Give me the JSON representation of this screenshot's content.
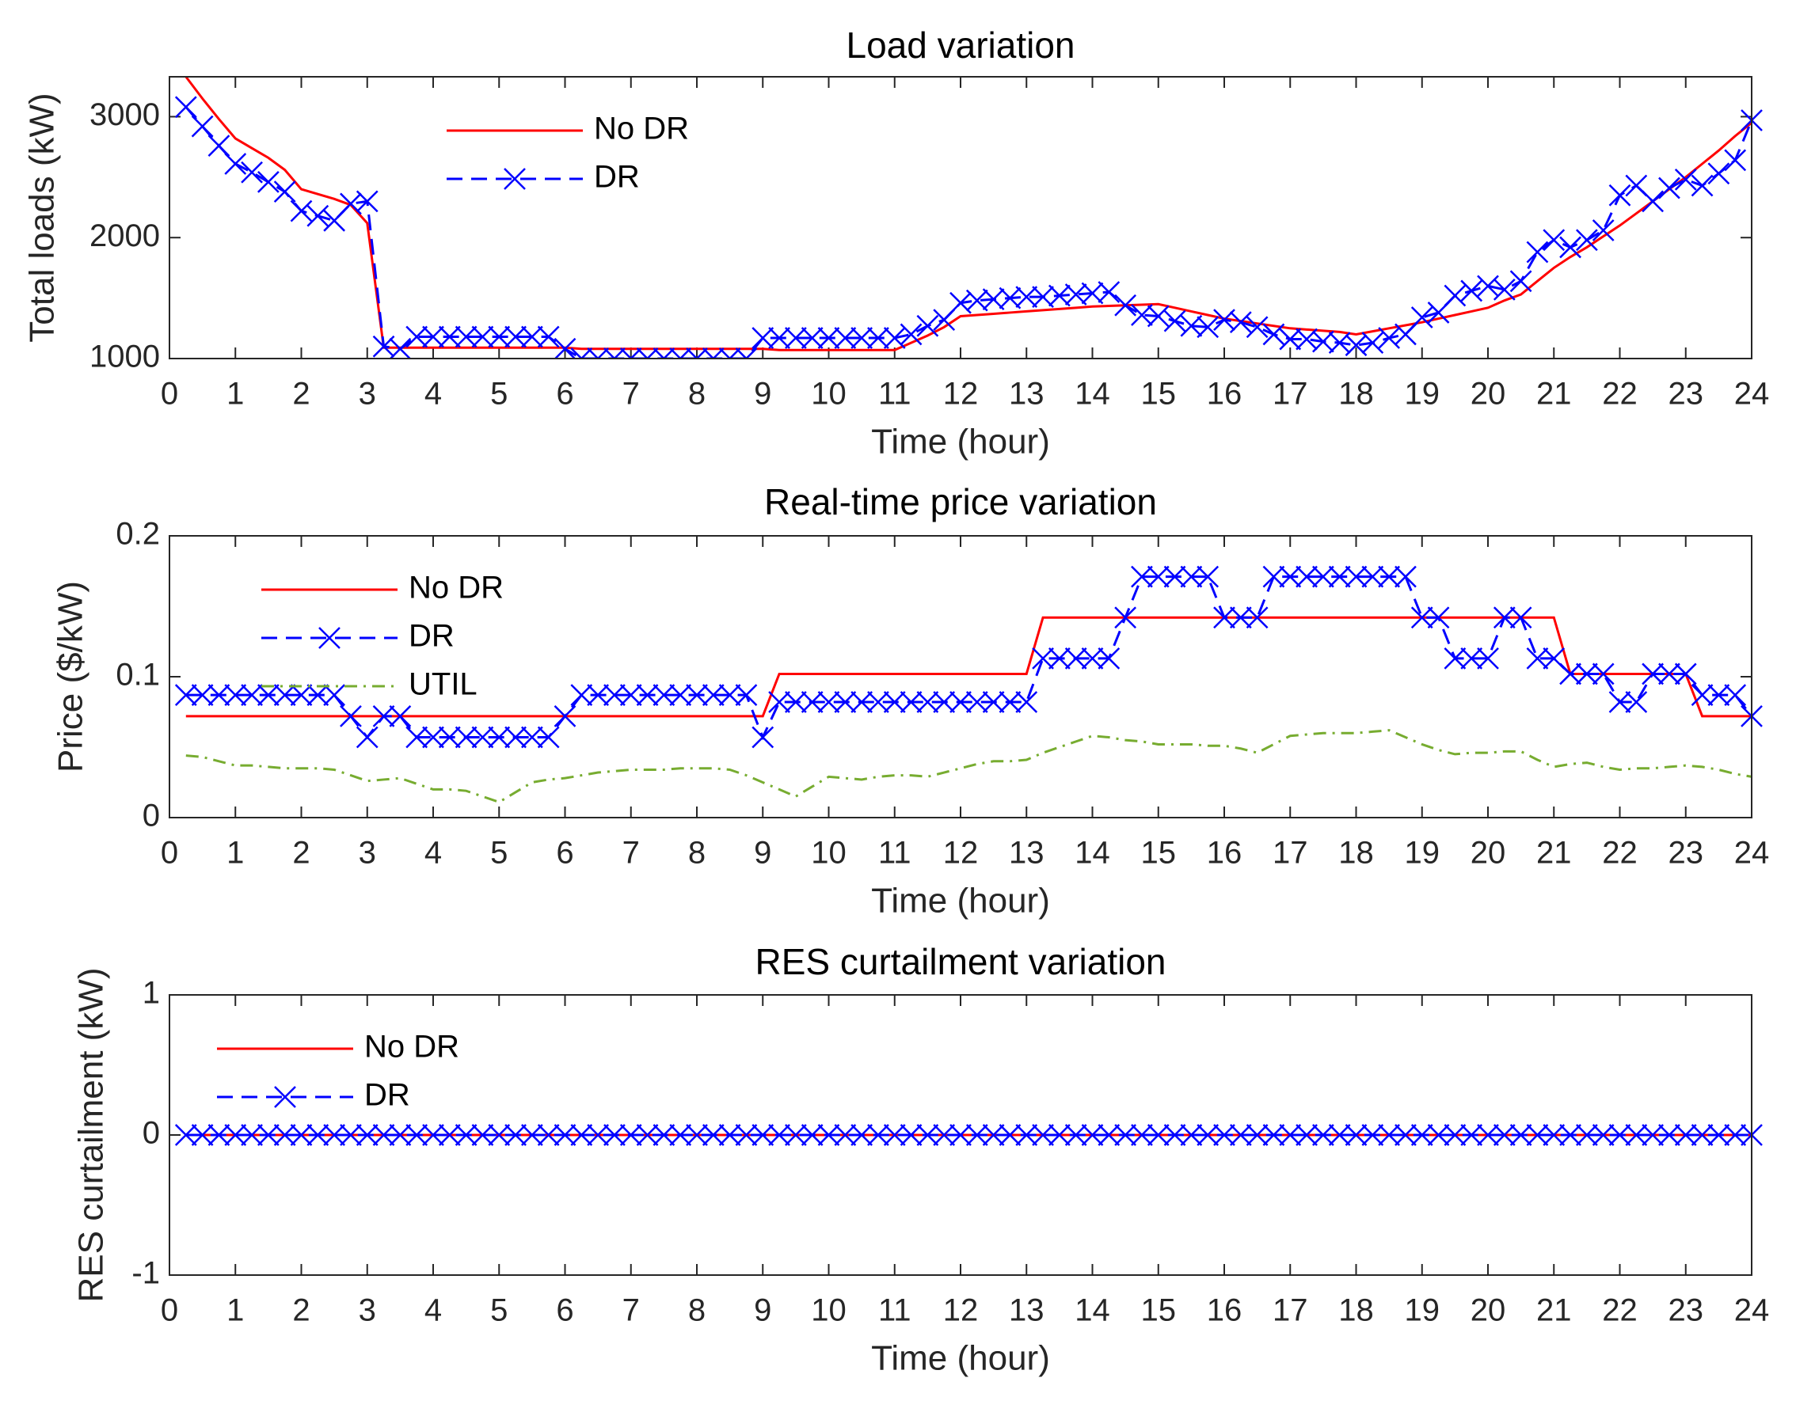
{
  "chart_data": [
    {
      "type": "line",
      "title": "Load variation",
      "xlabel": "Time (hour)",
      "ylabel": "Total loads (kW)",
      "x": [
        0.25,
        0.5,
        0.75,
        1,
        1.25,
        1.5,
        1.75,
        2,
        2.25,
        2.5,
        2.75,
        3,
        3.25,
        3.5,
        3.75,
        4,
        4.25,
        4.5,
        4.75,
        5,
        5.25,
        5.5,
        5.75,
        6,
        6.25,
        6.5,
        6.75,
        7,
        7.25,
        7.5,
        7.75,
        8,
        8.25,
        8.5,
        8.75,
        9,
        9.25,
        9.5,
        9.75,
        10,
        10.25,
        10.5,
        10.75,
        11,
        11.25,
        11.5,
        11.75,
        12,
        12.25,
        12.5,
        12.75,
        13,
        13.25,
        13.5,
        13.75,
        14,
        14.25,
        14.5,
        14.75,
        15,
        15.25,
        15.5,
        15.75,
        16,
        16.25,
        16.5,
        16.75,
        17,
        17.25,
        17.5,
        17.75,
        18,
        18.25,
        18.5,
        18.75,
        19,
        19.25,
        19.5,
        19.75,
        20,
        20.25,
        20.5,
        20.75,
        21,
        21.25,
        21.5,
        21.75,
        22,
        22.25,
        22.5,
        22.75,
        23,
        23.25,
        23.5,
        23.75,
        24
      ],
      "series": [
        {
          "name": "No DR",
          "color": "#ff0000",
          "linestyle": "-",
          "values": [
            3330,
            3150,
            2980,
            2820,
            2740,
            2660,
            2560,
            2400,
            2360,
            2320,
            2270,
            2120,
            1090,
            1090,
            1090,
            1090,
            1090,
            1090,
            1090,
            1090,
            1090,
            1090,
            1090,
            1090,
            1080,
            1080,
            1080,
            1080,
            1080,
            1080,
            1080,
            1080,
            1080,
            1080,
            1080,
            1080,
            1070,
            1070,
            1070,
            1070,
            1070,
            1070,
            1070,
            1070,
            1130,
            1190,
            1260,
            1350,
            1360,
            1370,
            1380,
            1390,
            1400,
            1410,
            1420,
            1430,
            1435,
            1440,
            1445,
            1450,
            1420,
            1390,
            1360,
            1330,
            1310,
            1290,
            1270,
            1250,
            1240,
            1230,
            1220,
            1200,
            1225,
            1250,
            1275,
            1300,
            1330,
            1360,
            1390,
            1420,
            1480,
            1530,
            1640,
            1750,
            1840,
            1920,
            2010,
            2100,
            2200,
            2300,
            2400,
            2500,
            2610,
            2720,
            2840,
            2950
          ]
        },
        {
          "name": "DR",
          "color": "#0000ff",
          "linestyle": "--",
          "marker": "x",
          "values": [
            3080,
            2920,
            2760,
            2610,
            2540,
            2460,
            2380,
            2220,
            2180,
            2140,
            2280,
            2300,
            1100,
            1080,
            1180,
            1180,
            1180,
            1180,
            1180,
            1180,
            1180,
            1180,
            1180,
            1080,
            1000,
            1000,
            1000,
            1000,
            1000,
            1000,
            1000,
            1000,
            1000,
            1000,
            1000,
            1170,
            1170,
            1170,
            1170,
            1170,
            1170,
            1170,
            1170,
            1170,
            1200,
            1270,
            1320,
            1460,
            1480,
            1490,
            1500,
            1510,
            1510,
            1520,
            1530,
            1540,
            1550,
            1440,
            1360,
            1350,
            1310,
            1270,
            1260,
            1320,
            1300,
            1260,
            1200,
            1160,
            1160,
            1140,
            1130,
            1110,
            1130,
            1170,
            1200,
            1340,
            1380,
            1520,
            1560,
            1600,
            1570,
            1640,
            1880,
            1980,
            1920,
            1980,
            2060,
            2350,
            2430,
            2300,
            2410,
            2480,
            2430,
            2530,
            2640,
            2970
          ]
        }
      ],
      "xlim": [
        0,
        24
      ],
      "xticks": [
        0,
        1,
        2,
        3,
        4,
        5,
        6,
        7,
        8,
        9,
        10,
        11,
        12,
        13,
        14,
        15,
        16,
        17,
        18,
        19,
        20,
        21,
        22,
        23,
        24
      ],
      "ylim": [
        1000,
        3330
      ],
      "yticks": [
        1000,
        2000,
        3000
      ],
      "legend": "upper left"
    },
    {
      "type": "line",
      "title": "Real-time price variation",
      "xlabel": "Time (hour)",
      "ylabel": "Price ($/kW)",
      "x": [
        0.25,
        0.5,
        0.75,
        1,
        1.25,
        1.5,
        1.75,
        2,
        2.25,
        2.5,
        2.75,
        3,
        3.25,
        3.5,
        3.75,
        4,
        4.25,
        4.5,
        4.75,
        5,
        5.25,
        5.5,
        5.75,
        6,
        6.25,
        6.5,
        6.75,
        7,
        7.25,
        7.5,
        7.75,
        8,
        8.25,
        8.5,
        8.75,
        9,
        9.25,
        9.5,
        9.75,
        10,
        10.25,
        10.5,
        10.75,
        11,
        11.25,
        11.5,
        11.75,
        12,
        12.25,
        12.5,
        12.75,
        13,
        13.25,
        13.5,
        13.75,
        14,
        14.25,
        14.5,
        14.75,
        15,
        15.25,
        15.5,
        15.75,
        16,
        16.25,
        16.5,
        16.75,
        17,
        17.25,
        17.5,
        17.75,
        18,
        18.25,
        18.5,
        18.75,
        19,
        19.25,
        19.5,
        19.75,
        20,
        20.25,
        20.5,
        20.75,
        21,
        21.25,
        21.5,
        21.75,
        22,
        22.25,
        22.5,
        22.75,
        23,
        23.25,
        23.5,
        23.75,
        24
      ],
      "series": [
        {
          "name": "No DR",
          "color": "#ff0000",
          "linestyle": "-",
          "values": [
            0.072,
            0.072,
            0.072,
            0.072,
            0.072,
            0.072,
            0.072,
            0.072,
            0.072,
            0.072,
            0.072,
            0.072,
            0.072,
            0.072,
            0.072,
            0.072,
            0.072,
            0.072,
            0.072,
            0.072,
            0.072,
            0.072,
            0.072,
            0.072,
            0.072,
            0.072,
            0.072,
            0.072,
            0.072,
            0.072,
            0.072,
            0.072,
            0.072,
            0.072,
            0.072,
            0.072,
            0.102,
            0.102,
            0.102,
            0.102,
            0.102,
            0.102,
            0.102,
            0.102,
            0.102,
            0.102,
            0.102,
            0.102,
            0.102,
            0.102,
            0.102,
            0.102,
            0.142,
            0.142,
            0.142,
            0.142,
            0.142,
            0.142,
            0.142,
            0.142,
            0.142,
            0.142,
            0.142,
            0.142,
            0.142,
            0.142,
            0.142,
            0.142,
            0.142,
            0.142,
            0.142,
            0.142,
            0.142,
            0.142,
            0.142,
            0.142,
            0.142,
            0.142,
            0.142,
            0.142,
            0.142,
            0.142,
            0.142,
            0.142,
            0.102,
            0.102,
            0.102,
            0.102,
            0.102,
            0.102,
            0.102,
            0.102,
            0.072,
            0.072,
            0.072,
            0.072
          ]
        },
        {
          "name": "DR",
          "color": "#0000ff",
          "linestyle": "--",
          "marker": "x",
          "values": [
            0.087,
            0.087,
            0.087,
            0.087,
            0.087,
            0.087,
            0.087,
            0.087,
            0.087,
            0.087,
            0.072,
            0.057,
            0.072,
            0.072,
            0.057,
            0.057,
            0.057,
            0.057,
            0.057,
            0.057,
            0.057,
            0.057,
            0.057,
            0.072,
            0.087,
            0.087,
            0.087,
            0.087,
            0.087,
            0.087,
            0.087,
            0.087,
            0.087,
            0.087,
            0.087,
            0.057,
            0.082,
            0.082,
            0.082,
            0.082,
            0.082,
            0.082,
            0.082,
            0.082,
            0.082,
            0.082,
            0.082,
            0.082,
            0.082,
            0.082,
            0.082,
            0.082,
            0.113,
            0.113,
            0.113,
            0.113,
            0.113,
            0.142,
            0.171,
            0.171,
            0.171,
            0.171,
            0.171,
            0.142,
            0.142,
            0.142,
            0.171,
            0.171,
            0.171,
            0.171,
            0.171,
            0.171,
            0.171,
            0.171,
            0.171,
            0.142,
            0.142,
            0.113,
            0.113,
            0.113,
            0.142,
            0.142,
            0.113,
            0.113,
            0.102,
            0.102,
            0.102,
            0.082,
            0.082,
            0.102,
            0.102,
            0.102,
            0.087,
            0.087,
            0.087,
            0.072
          ]
        },
        {
          "name": "UTIL",
          "color": "#77ac30",
          "linestyle": "-.",
          "values": [
            0.044,
            0.043,
            0.04,
            0.037,
            0.037,
            0.036,
            0.035,
            0.035,
            0.035,
            0.034,
            0.03,
            0.026,
            0.027,
            0.028,
            0.024,
            0.02,
            0.02,
            0.019,
            0.015,
            0.011,
            0.018,
            0.025,
            0.027,
            0.028,
            0.03,
            0.032,
            0.033,
            0.034,
            0.034,
            0.034,
            0.035,
            0.035,
            0.035,
            0.034,
            0.03,
            0.025,
            0.02,
            0.015,
            0.022,
            0.029,
            0.028,
            0.027,
            0.029,
            0.03,
            0.03,
            0.029,
            0.032,
            0.035,
            0.038,
            0.04,
            0.04,
            0.041,
            0.046,
            0.05,
            0.054,
            0.058,
            0.057,
            0.055,
            0.054,
            0.052,
            0.052,
            0.052,
            0.051,
            0.051,
            0.049,
            0.046,
            0.052,
            0.058,
            0.059,
            0.06,
            0.06,
            0.06,
            0.061,
            0.062,
            0.057,
            0.052,
            0.048,
            0.045,
            0.046,
            0.046,
            0.047,
            0.047,
            0.041,
            0.036,
            0.038,
            0.039,
            0.036,
            0.034,
            0.035,
            0.035,
            0.036,
            0.037,
            0.036,
            0.034,
            0.031,
            0.029
          ]
        }
      ],
      "xlim": [
        0,
        24
      ],
      "xticks": [
        0,
        1,
        2,
        3,
        4,
        5,
        6,
        7,
        8,
        9,
        10,
        11,
        12,
        13,
        14,
        15,
        16,
        17,
        18,
        19,
        20,
        21,
        22,
        23,
        24
      ],
      "ylim": [
        0,
        0.2
      ],
      "yticks": [
        0,
        0.1,
        0.2
      ],
      "legend": "upper left"
    },
    {
      "type": "line",
      "title": "RES curtailment variation",
      "xlabel": "Time (hour)",
      "ylabel": "RES curtailment (kW)",
      "x": [
        0.25,
        0.5,
        0.75,
        1,
        1.25,
        1.5,
        1.75,
        2,
        2.25,
        2.5,
        2.75,
        3,
        3.25,
        3.5,
        3.75,
        4,
        4.25,
        4.5,
        4.75,
        5,
        5.25,
        5.5,
        5.75,
        6,
        6.25,
        6.5,
        6.75,
        7,
        7.25,
        7.5,
        7.75,
        8,
        8.25,
        8.5,
        8.75,
        9,
        9.25,
        9.5,
        9.75,
        10,
        10.25,
        10.5,
        10.75,
        11,
        11.25,
        11.5,
        11.75,
        12,
        12.25,
        12.5,
        12.75,
        13,
        13.25,
        13.5,
        13.75,
        14,
        14.25,
        14.5,
        14.75,
        15,
        15.25,
        15.5,
        15.75,
        16,
        16.25,
        16.5,
        16.75,
        17,
        17.25,
        17.5,
        17.75,
        18,
        18.25,
        18.5,
        18.75,
        19,
        19.25,
        19.5,
        19.75,
        20,
        20.25,
        20.5,
        20.75,
        21,
        21.25,
        21.5,
        21.75,
        22,
        22.25,
        22.5,
        22.75,
        23,
        23.25,
        23.5,
        23.75,
        24
      ],
      "series": [
        {
          "name": "No DR",
          "color": "#ff0000",
          "linestyle": "-",
          "values": [
            0,
            0,
            0,
            0,
            0,
            0,
            0,
            0,
            0,
            0,
            0,
            0,
            0,
            0,
            0,
            0,
            0,
            0,
            0,
            0,
            0,
            0,
            0,
            0,
            0,
            0,
            0,
            0,
            0,
            0,
            0,
            0,
            0,
            0,
            0,
            0,
            0,
            0,
            0,
            0,
            0,
            0,
            0,
            0,
            0,
            0,
            0,
            0,
            0,
            0,
            0,
            0,
            0,
            0,
            0,
            0,
            0,
            0,
            0,
            0,
            0,
            0,
            0,
            0,
            0,
            0,
            0,
            0,
            0,
            0,
            0,
            0,
            0,
            0,
            0,
            0,
            0,
            0,
            0,
            0,
            0,
            0,
            0,
            0,
            0,
            0,
            0,
            0,
            0,
            0,
            0,
            0,
            0,
            0,
            0,
            0
          ]
        },
        {
          "name": "DR",
          "color": "#0000ff",
          "linestyle": "--",
          "marker": "x",
          "values": [
            0,
            0,
            0,
            0,
            0,
            0,
            0,
            0,
            0,
            0,
            0,
            0,
            0,
            0,
            0,
            0,
            0,
            0,
            0,
            0,
            0,
            0,
            0,
            0,
            0,
            0,
            0,
            0,
            0,
            0,
            0,
            0,
            0,
            0,
            0,
            0,
            0,
            0,
            0,
            0,
            0,
            0,
            0,
            0,
            0,
            0,
            0,
            0,
            0,
            0,
            0,
            0,
            0,
            0,
            0,
            0,
            0,
            0,
            0,
            0,
            0,
            0,
            0,
            0,
            0,
            0,
            0,
            0,
            0,
            0,
            0,
            0,
            0,
            0,
            0,
            0,
            0,
            0,
            0,
            0,
            0,
            0,
            0,
            0,
            0,
            0,
            0,
            0,
            0,
            0,
            0,
            0,
            0,
            0,
            0,
            0
          ]
        }
      ],
      "xlim": [
        0,
        24
      ],
      "xticks": [
        0,
        1,
        2,
        3,
        4,
        5,
        6,
        7,
        8,
        9,
        10,
        11,
        12,
        13,
        14,
        15,
        16,
        17,
        18,
        19,
        20,
        21,
        22,
        23,
        24
      ],
      "ylim": [
        -1,
        1
      ],
      "yticks": [
        -1,
        0,
        1
      ],
      "legend": "upper left"
    }
  ]
}
